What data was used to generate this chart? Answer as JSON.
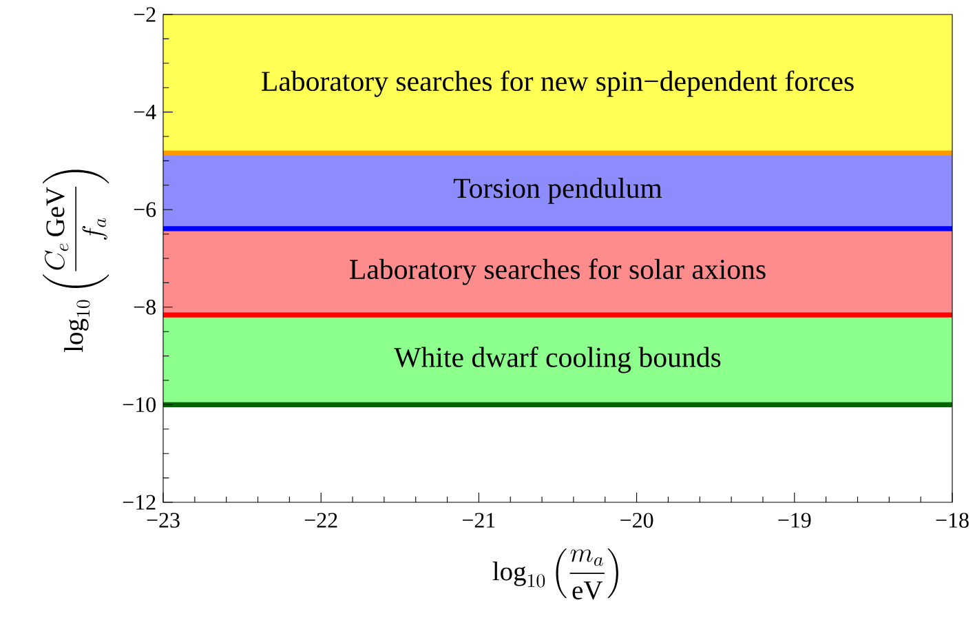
{
  "chart_data": {
    "type": "area",
    "xlabel": "\\log_{10}\\left(\\frac{m_a}{\\mathrm{eV}}\\right)",
    "ylabel": "\\log_{10}\\left(\\frac{C_e\\,\\mathrm{GeV}}{f_a}\\right)",
    "xlim": [
      -23,
      -18
    ],
    "ylim": [
      -12,
      -2
    ],
    "xticks": [
      {
        "value": -23,
        "label": "−23"
      },
      {
        "value": -22.8,
        "label": null
      },
      {
        "value": -22.6,
        "label": null
      },
      {
        "value": -22.4,
        "label": null
      },
      {
        "value": -22.2,
        "label": null
      },
      {
        "value": -22,
        "label": "−22"
      },
      {
        "value": -21.8,
        "label": null
      },
      {
        "value": -21.6,
        "label": null
      },
      {
        "value": -21.4,
        "label": null
      },
      {
        "value": -21.2,
        "label": null
      },
      {
        "value": -21,
        "label": "−21"
      },
      {
        "value": -20.8,
        "label": null
      },
      {
        "value": -20.6,
        "label": null
      },
      {
        "value": -20.4,
        "label": null
      },
      {
        "value": -20.2,
        "label": null
      },
      {
        "value": -20,
        "label": "−20"
      },
      {
        "value": -19.8,
        "label": null
      },
      {
        "value": -19.6,
        "label": null
      },
      {
        "value": -19.4,
        "label": null
      },
      {
        "value": -19.2,
        "label": null
      },
      {
        "value": -19,
        "label": "−19"
      },
      {
        "value": -18.8,
        "label": null
      },
      {
        "value": -18.6,
        "label": null
      },
      {
        "value": -18.4,
        "label": null
      },
      {
        "value": -18.2,
        "label": null
      },
      {
        "value": -18,
        "label": "−18"
      }
    ],
    "yticks": [
      {
        "value": -12,
        "label": "−12"
      },
      {
        "value": -11.5,
        "label": null
      },
      {
        "value": -11,
        "label": null
      },
      {
        "value": -10.5,
        "label": null
      },
      {
        "value": -10,
        "label": "−10"
      },
      {
        "value": -9.5,
        "label": null
      },
      {
        "value": -9,
        "label": null
      },
      {
        "value": -8.5,
        "label": null
      },
      {
        "value": -8,
        "label": "−8"
      },
      {
        "value": -7.5,
        "label": null
      },
      {
        "value": -7,
        "label": null
      },
      {
        "value": -6.5,
        "label": null
      },
      {
        "value": -6,
        "label": "−6"
      },
      {
        "value": -5.5,
        "label": null
      },
      {
        "value": -5,
        "label": null
      },
      {
        "value": -4.5,
        "label": null
      },
      {
        "value": -4,
        "label": "−4"
      },
      {
        "value": -3.5,
        "label": null
      },
      {
        "value": -3,
        "label": null
      },
      {
        "value": -2.5,
        "label": null
      },
      {
        "value": -2,
        "label": "−2"
      }
    ],
    "bands": [
      {
        "axis": "y",
        "from": -4.84,
        "to": -2,
        "label": "Laboratory searches for new spin−dependent forces",
        "color": "#ffff55"
      },
      {
        "axis": "y",
        "from": -6.39,
        "to": -4.84,
        "label": "Torsion pendulum",
        "color": "#8c8cff"
      },
      {
        "axis": "y",
        "from": -8.16,
        "to": -6.39,
        "label": "Laboratory searches for solar axions",
        "color": "#ff8c8c"
      },
      {
        "axis": "y",
        "from": -10,
        "to": -8.16,
        "label": "White dwarf cooling bounds",
        "color": "#8cff8c"
      }
    ],
    "ref_lines": [
      {
        "axis": "y",
        "value": -4.84,
        "color": "#ff9900"
      },
      {
        "axis": "y",
        "value": -6.39,
        "color": "#0000ff"
      },
      {
        "axis": "y",
        "value": -8.16,
        "color": "#ff0000"
      },
      {
        "axis": "y",
        "value": -10,
        "color": "#006400"
      }
    ]
  }
}
